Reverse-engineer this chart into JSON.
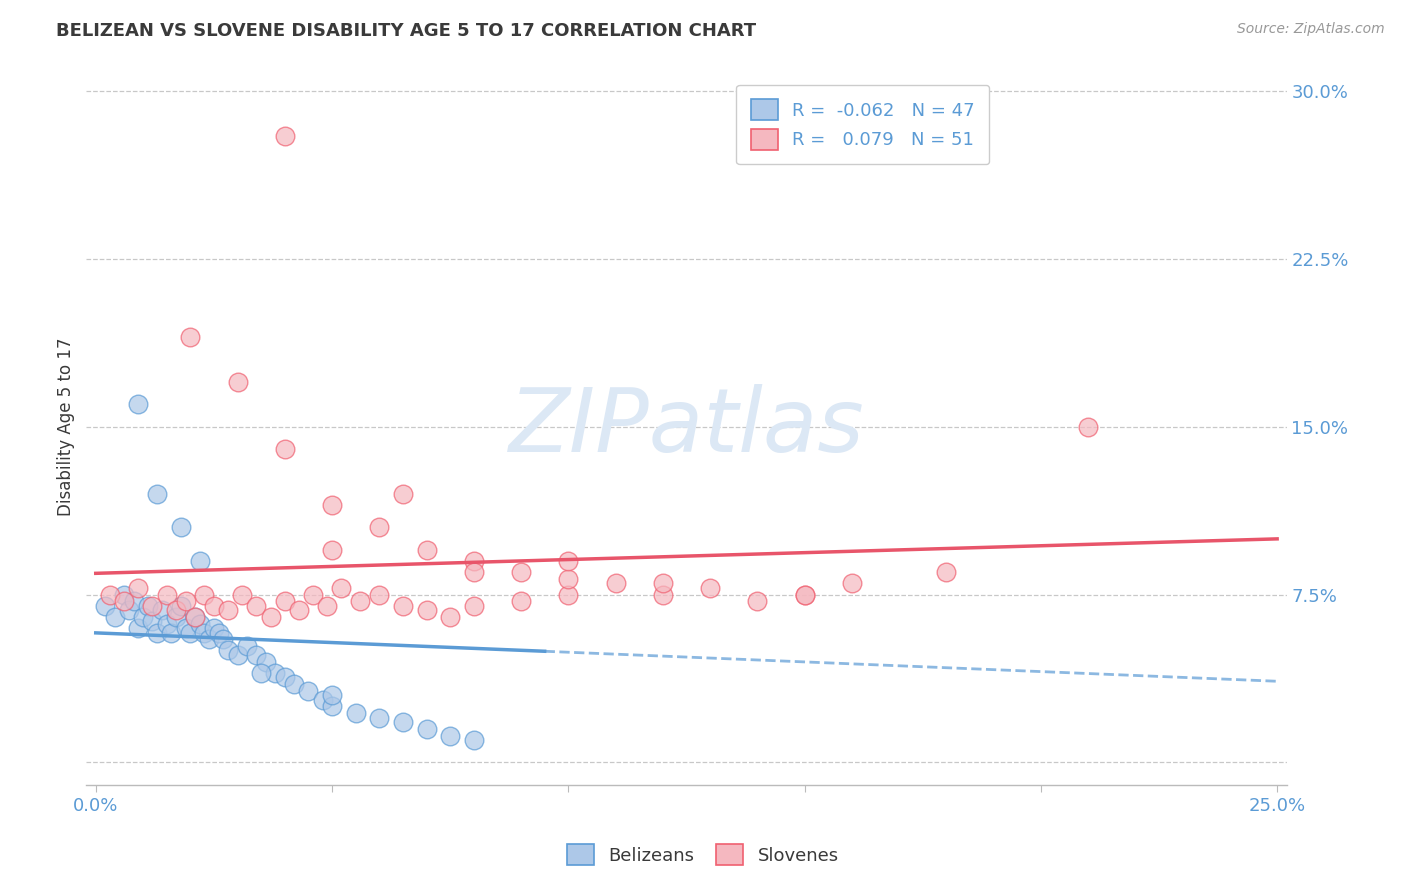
{
  "title": "BELIZEAN VS SLOVENE DISABILITY AGE 5 TO 17 CORRELATION CHART",
  "source_text": "Source: ZipAtlas.com",
  "ylabel": "Disability Age 5 to 17",
  "y_ticks": [
    0.0,
    0.075,
    0.15,
    0.225,
    0.3
  ],
  "y_tick_labels": [
    "",
    "7.5%",
    "15.0%",
    "22.5%",
    "30.0%"
  ],
  "x_ticks": [
    0.0,
    0.05,
    0.1,
    0.15,
    0.2,
    0.25
  ],
  "xlim": [
    -0.002,
    0.252
  ],
  "ylim": [
    -0.01,
    0.31
  ],
  "belizean_R": -0.062,
  "belizean_N": 47,
  "slovene_R": 0.079,
  "slovene_N": 51,
  "belizean_color": "#adc8e8",
  "slovene_color": "#f5b8c0",
  "belizean_edge_color": "#5b9bd5",
  "slovene_edge_color": "#f06070",
  "belizean_line_color": "#5b9bd5",
  "slovene_line_color": "#e8556a",
  "legend_label_belizean": "Belizeans",
  "legend_label_slovene": "Slovenes",
  "title_color": "#3a3a3a",
  "axis_label_color": "#5b9bd5",
  "watermark_color": "#dce8f5",
  "background_color": "#ffffff",
  "belizean_x": [
    0.002,
    0.004,
    0.006,
    0.007,
    0.008,
    0.009,
    0.01,
    0.011,
    0.012,
    0.013,
    0.014,
    0.015,
    0.016,
    0.017,
    0.018,
    0.019,
    0.02,
    0.021,
    0.022,
    0.023,
    0.024,
    0.025,
    0.026,
    0.027,
    0.028,
    0.03,
    0.032,
    0.034,
    0.036,
    0.038,
    0.04,
    0.042,
    0.045,
    0.048,
    0.05,
    0.055,
    0.06,
    0.065,
    0.07,
    0.075,
    0.08,
    0.009,
    0.013,
    0.018,
    0.022,
    0.035,
    0.05
  ],
  "belizean_y": [
    0.07,
    0.065,
    0.075,
    0.068,
    0.072,
    0.06,
    0.065,
    0.07,
    0.063,
    0.058,
    0.068,
    0.062,
    0.058,
    0.065,
    0.07,
    0.06,
    0.058,
    0.065,
    0.062,
    0.058,
    0.055,
    0.06,
    0.058,
    0.055,
    0.05,
    0.048,
    0.052,
    0.048,
    0.045,
    0.04,
    0.038,
    0.035,
    0.032,
    0.028,
    0.025,
    0.022,
    0.02,
    0.018,
    0.015,
    0.012,
    0.01,
    0.16,
    0.12,
    0.105,
    0.09,
    0.04,
    0.03
  ],
  "slovene_x": [
    0.003,
    0.006,
    0.009,
    0.012,
    0.015,
    0.017,
    0.019,
    0.021,
    0.023,
    0.025,
    0.028,
    0.031,
    0.034,
    0.037,
    0.04,
    0.043,
    0.046,
    0.049,
    0.052,
    0.056,
    0.06,
    0.065,
    0.07,
    0.075,
    0.08,
    0.09,
    0.1,
    0.11,
    0.12,
    0.13,
    0.14,
    0.15,
    0.16,
    0.18,
    0.02,
    0.03,
    0.04,
    0.05,
    0.06,
    0.07,
    0.08,
    0.09,
    0.1,
    0.12,
    0.15,
    0.21,
    0.05,
    0.065,
    0.08,
    0.1,
    0.04
  ],
  "slovene_y": [
    0.075,
    0.072,
    0.078,
    0.07,
    0.075,
    0.068,
    0.072,
    0.065,
    0.075,
    0.07,
    0.068,
    0.075,
    0.07,
    0.065,
    0.072,
    0.068,
    0.075,
    0.07,
    0.078,
    0.072,
    0.075,
    0.07,
    0.068,
    0.065,
    0.07,
    0.072,
    0.075,
    0.08,
    0.075,
    0.078,
    0.072,
    0.075,
    0.08,
    0.085,
    0.19,
    0.17,
    0.14,
    0.115,
    0.105,
    0.095,
    0.09,
    0.085,
    0.082,
    0.08,
    0.075,
    0.15,
    0.095,
    0.12,
    0.085,
    0.09,
    0.28
  ]
}
